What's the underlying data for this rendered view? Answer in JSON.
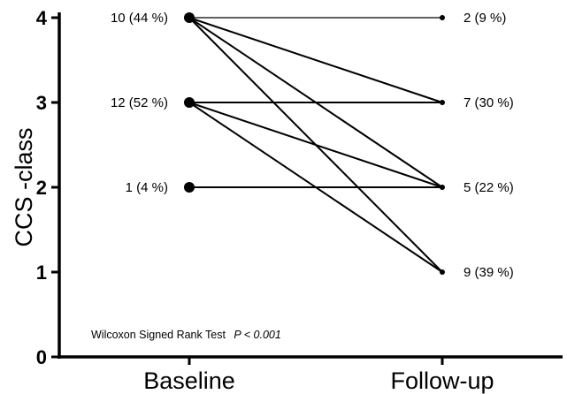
{
  "chart_data": {
    "type": "line",
    "categories": [
      "Baseline",
      "Follow-up"
    ],
    "ylabel": "CCS -class",
    "xlabel": "",
    "ylim": [
      0,
      4
    ],
    "yticks": [
      0,
      1,
      2,
      3,
      4
    ],
    "grid": false,
    "legend": "none",
    "baseline_labels": [
      {
        "y": 4,
        "text": "10 (44 %)"
      },
      {
        "y": 3,
        "text": "12 (52 %)"
      },
      {
        "y": 2,
        "text": "1 (4 %)"
      }
    ],
    "followup_labels": [
      {
        "y": 4,
        "text": "2 (9 %)"
      },
      {
        "y": 3,
        "text": "7 (30 %)"
      },
      {
        "y": 2,
        "text": "5 (22 %)"
      },
      {
        "y": 1,
        "text": "9 (39 %)"
      }
    ],
    "transitions": [
      {
        "from": 4,
        "to": 4
      },
      {
        "from": 4,
        "to": 3
      },
      {
        "from": 4,
        "to": 2
      },
      {
        "from": 4,
        "to": 1
      },
      {
        "from": 3,
        "to": 3
      },
      {
        "from": 3,
        "to": 2
      },
      {
        "from": 3,
        "to": 1
      },
      {
        "from": 2,
        "to": 2
      }
    ],
    "annotation": {
      "text": "Wilcoxon Signed Rank Test",
      "p_text": "P < 0.001"
    }
  }
}
